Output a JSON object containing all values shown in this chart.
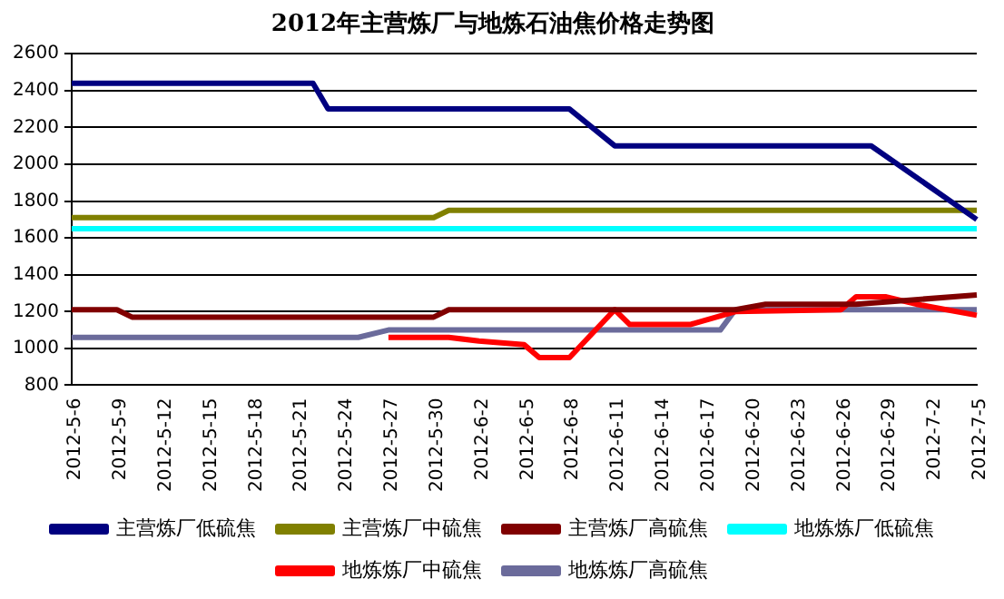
{
  "chart_data": {
    "type": "line",
    "title": "2012年主营炼厂与地炼石油焦价格走势图",
    "ylim": [
      800,
      2600
    ],
    "yticks": [
      800,
      1000,
      1200,
      1400,
      1600,
      1800,
      2000,
      2200,
      2400,
      2600
    ],
    "xlim": [
      "2012-05-06",
      "2012-07-05"
    ],
    "xticks": [
      {
        "value": "2012-05-06",
        "label": "2012-5-6"
      },
      {
        "value": "2012-05-09",
        "label": "2012-5-9"
      },
      {
        "value": "2012-05-12",
        "label": "2012-5-12"
      },
      {
        "value": "2012-05-15",
        "label": "2012-5-15"
      },
      {
        "value": "2012-05-18",
        "label": "2012-5-18"
      },
      {
        "value": "2012-05-21",
        "label": "2012-5-21"
      },
      {
        "value": "2012-05-24",
        "label": "2012-5-24"
      },
      {
        "value": "2012-05-27",
        "label": "2012-5-27"
      },
      {
        "value": "2012-05-30",
        "label": "2012-5-30"
      },
      {
        "value": "2012-06-02",
        "label": "2012-6-2"
      },
      {
        "value": "2012-06-05",
        "label": "2012-6-5"
      },
      {
        "value": "2012-06-08",
        "label": "2012-6-8"
      },
      {
        "value": "2012-06-11",
        "label": "2012-6-11"
      },
      {
        "value": "2012-06-14",
        "label": "2012-6-14"
      },
      {
        "value": "2012-06-17",
        "label": "2012-6-17"
      },
      {
        "value": "2012-06-20",
        "label": "2012-6-20"
      },
      {
        "value": "2012-06-23",
        "label": "2012-6-23"
      },
      {
        "value": "2012-06-26",
        "label": "2012-6-26"
      },
      {
        "value": "2012-06-29",
        "label": "2012-6-29"
      },
      {
        "value": "2012-07-02",
        "label": "2012-7-2"
      },
      {
        "value": "2012-07-05",
        "label": "2012-7-5"
      }
    ],
    "grid": "y",
    "legend": "bottom",
    "marker": "none",
    "line_style": "solid",
    "series": [
      {
        "name": "主营炼厂低硫焦",
        "color": "#000080",
        "x": [
          "2012-05-06",
          "2012-05-22",
          "2012-05-23",
          "2012-06-08",
          "2012-06-11",
          "2012-06-28",
          "2012-07-05"
        ],
        "values": [
          2440,
          2440,
          2300,
          2300,
          2100,
          2100,
          1700
        ]
      },
      {
        "name": "主营炼厂中硫焦",
        "color": "#808000",
        "x": [
          "2012-05-06",
          "2012-05-30",
          "2012-05-31",
          "2012-07-05"
        ],
        "values": [
          1710,
          1710,
          1750,
          1750
        ]
      },
      {
        "name": "主营炼厂高硫焦",
        "color": "#800000",
        "x": [
          "2012-05-06",
          "2012-05-09",
          "2012-05-10",
          "2012-05-30",
          "2012-05-31",
          "2012-06-19",
          "2012-06-21",
          "2012-06-27",
          "2012-07-05"
        ],
        "values": [
          1210,
          1210,
          1170,
          1170,
          1210,
          1210,
          1240,
          1240,
          1290
        ]
      },
      {
        "name": "地炼炼厂低硫焦",
        "color": "#00ffff",
        "x": [
          "2012-05-06",
          "2012-07-05"
        ],
        "values": [
          1650,
          1650
        ]
      },
      {
        "name": "地炼炼厂中硫焦",
        "color": "#ff0000",
        "x": [
          "2012-05-27",
          "2012-05-31",
          "2012-06-02",
          "2012-06-05",
          "2012-06-06",
          "2012-06-08",
          "2012-06-11",
          "2012-06-12",
          "2012-06-16",
          "2012-06-19",
          "2012-06-26",
          "2012-06-27",
          "2012-06-29",
          "2012-07-01",
          "2012-07-05"
        ],
        "values": [
          1060,
          1060,
          1040,
          1020,
          950,
          950,
          1210,
          1130,
          1130,
          1200,
          1210,
          1280,
          1280,
          1240,
          1180
        ]
      },
      {
        "name": "地炼炼厂高硫焦",
        "color": "#6b6b9b",
        "x": [
          "2012-05-06",
          "2012-05-25",
          "2012-05-27",
          "2012-06-18",
          "2012-06-19",
          "2012-07-05"
        ],
        "values": [
          1060,
          1060,
          1100,
          1100,
          1210,
          1210
        ]
      }
    ]
  }
}
